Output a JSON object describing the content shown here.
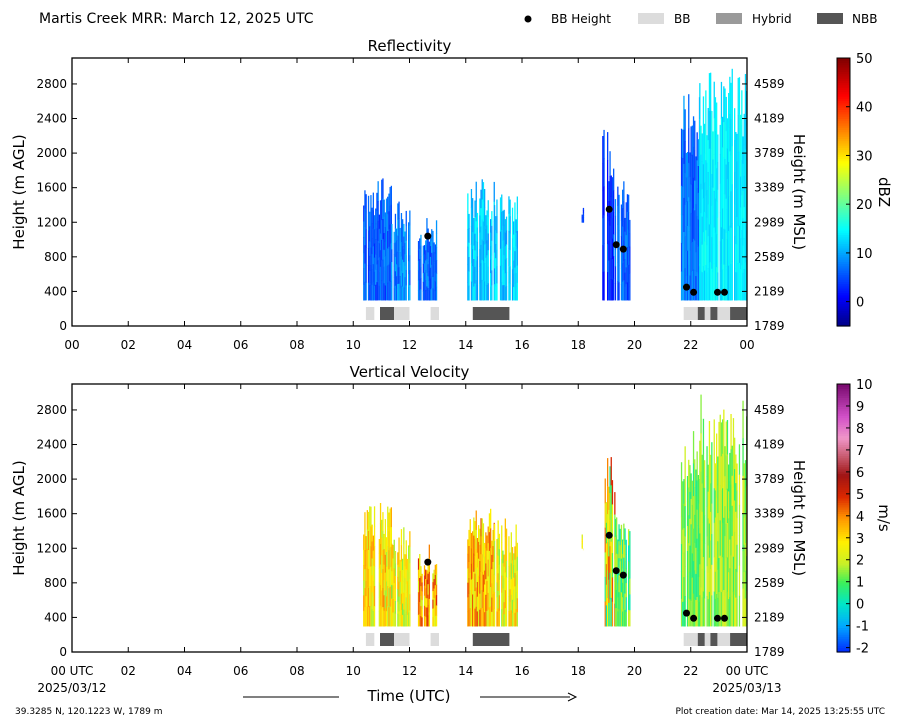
{
  "figure": {
    "title": "Martis Creek MRR:  March 12, 2025 UTC",
    "legend": [
      {
        "label": "BB Height",
        "kind": "dot",
        "color": "#000000"
      },
      {
        "label": "BB",
        "kind": "box",
        "color": "#dcdcdc"
      },
      {
        "label": "Hybrid",
        "kind": "box",
        "color": "#9a9a9a"
      },
      {
        "label": "NBB",
        "kind": "box",
        "color": "#555555"
      }
    ],
    "xlabel": "Time (UTC)",
    "x_start_label": "00 UTC",
    "x_end_label": "00 UTC",
    "date_start": "2025/03/12",
    "date_end": "2025/03/13",
    "footer_left": "39.3285 N, 120.1223 W, 1789 m",
    "footer_right": "Plot creation date: Mar 14, 2025 13:25:55 UTC",
    "colors": {
      "bb": "#dcdcdc",
      "hybrid": "#9a9a9a",
      "nbb": "#555555",
      "dot": "#000000"
    }
  },
  "chart_data": [
    {
      "type": "heatmap",
      "title": "Reflectivity",
      "ylabel": "Height (m AGL)",
      "ylabel_right": "Height (m MSL)",
      "xlim": [
        0,
        24
      ],
      "ylim": [
        0,
        3100
      ],
      "xticks": [
        "00",
        "02",
        "04",
        "06",
        "08",
        "10",
        "12",
        "14",
        "16",
        "18",
        "20",
        "22",
        "00"
      ],
      "yticks": [
        0,
        400,
        800,
        1200,
        1600,
        2000,
        2400,
        2800
      ],
      "yticks_right": [
        "1789",
        "2189",
        "2589",
        "2989",
        "3389",
        "3789",
        "4189",
        "4589"
      ],
      "colorbar": {
        "label": "dBZ",
        "range": [
          -5,
          50
        ],
        "ticks": [
          "0",
          "10",
          "20",
          "30",
          "40",
          "50"
        ],
        "tick_values": [
          0,
          10,
          20,
          30,
          40,
          50
        ]
      },
      "echo_blocks": [
        {
          "t_start": 10.35,
          "t_end": 11.35,
          "top": 1750,
          "value": 6,
          "value_var": 3
        },
        {
          "t_start": 11.35,
          "t_end": 12.0,
          "top": 1450,
          "value": 8,
          "value_var": 3
        },
        {
          "t_start": 12.3,
          "t_end": 12.95,
          "top": 1250,
          "value": 7,
          "value_var": 3
        },
        {
          "t_start": 14.05,
          "t_end": 15.0,
          "top": 1700,
          "value": 12,
          "value_var": 3
        },
        {
          "t_start": 15.0,
          "t_end": 15.85,
          "top": 1550,
          "value": 12,
          "value_var": 3
        },
        {
          "t_start": 18.12,
          "t_end": 18.18,
          "top": 1400,
          "base": 1200,
          "value": 4,
          "value_var": 1
        },
        {
          "t_start": 18.85,
          "t_end": 19.3,
          "top": 2300,
          "value": 4,
          "value_var": 3
        },
        {
          "t_start": 19.3,
          "t_end": 19.85,
          "top": 1700,
          "value": 6,
          "value_var": 3
        },
        {
          "t_start": 21.65,
          "t_end": 22.3,
          "top": 2700,
          "value": 7,
          "value_var": 3
        },
        {
          "t_start": 22.3,
          "t_end": 24.0,
          "top": 3000,
          "value": 14,
          "value_var": 2
        }
      ],
      "bb_heights": [
        {
          "t": 12.65,
          "h": 1040
        },
        {
          "t": 19.1,
          "h": 1350
        },
        {
          "t": 19.35,
          "h": 940
        },
        {
          "t": 19.6,
          "h": 890
        },
        {
          "t": 21.85,
          "h": 450
        },
        {
          "t": 22.1,
          "h": 390
        },
        {
          "t": 22.95,
          "h": 390
        },
        {
          "t": 23.2,
          "h": 390
        }
      ]
    },
    {
      "type": "heatmap",
      "title": "Vertical Velocity",
      "ylabel": "Height (m AGL)",
      "ylabel_right": "Height (m MSL)",
      "xlim": [
        0,
        24
      ],
      "ylim": [
        0,
        3100
      ],
      "xticks": [
        "02",
        "04",
        "06",
        "08",
        "10",
        "12",
        "14",
        "16",
        "18",
        "20",
        "22"
      ],
      "yticks": [
        0,
        400,
        800,
        1200,
        1600,
        2000,
        2400,
        2800
      ],
      "yticks_right": [
        "1789",
        "2189",
        "2589",
        "2989",
        "3389",
        "3789",
        "4189",
        "4589"
      ],
      "colorbar": {
        "label": "m/s",
        "range": [
          -2.2,
          10
        ],
        "ticks": [
          "-2",
          "-1",
          "0",
          "1",
          "2",
          "3",
          "4",
          "5",
          "6",
          "7",
          "8",
          "9",
          "10"
        ],
        "tick_values": [
          -2,
          -1,
          0,
          1,
          2,
          3,
          4,
          5,
          6,
          7,
          8,
          9,
          10
        ]
      },
      "echo_blocks": [
        {
          "t_start": 10.35,
          "t_end": 11.35,
          "top": 1750,
          "value": 2.8,
          "value_var": 1.2
        },
        {
          "t_start": 11.35,
          "t_end": 12.0,
          "top": 1450,
          "value": 2.5,
          "value_var": 1.2
        },
        {
          "t_start": 12.3,
          "t_end": 12.95,
          "top": 1250,
          "value": 3.5,
          "value_var": 1.5
        },
        {
          "t_start": 14.05,
          "t_end": 15.0,
          "top": 1700,
          "value": 3.3,
          "value_var": 1.3
        },
        {
          "t_start": 15.0,
          "t_end": 15.85,
          "top": 1550,
          "value": 2.5,
          "value_var": 1.2
        },
        {
          "t_start": 18.12,
          "t_end": 18.18,
          "top": 1400,
          "base": 1200,
          "value": 2.5,
          "value_var": 0.5
        },
        {
          "t_start": 18.85,
          "t_end": 19.3,
          "top": 2300,
          "value": 2.5,
          "value_var": 2.5
        },
        {
          "t_start": 19.3,
          "t_end": 19.85,
          "top": 1700,
          "value": 1.0,
          "value_var": 1.0
        },
        {
          "t_start": 21.65,
          "t_end": 22.3,
          "top": 2700,
          "value": 1.2,
          "value_var": 0.8
        },
        {
          "t_start": 22.3,
          "t_end": 24.0,
          "top": 3000,
          "value": 1.6,
          "value_var": 0.8
        }
      ],
      "bb_heights": [
        {
          "t": 12.65,
          "h": 1040
        },
        {
          "t": 19.1,
          "h": 1350
        },
        {
          "t": 19.35,
          "h": 940
        },
        {
          "t": 19.6,
          "h": 890
        },
        {
          "t": 21.85,
          "h": 450
        },
        {
          "t": 22.1,
          "h": 390
        },
        {
          "t": 22.95,
          "h": 390
        },
        {
          "t": 23.2,
          "h": 390
        }
      ]
    }
  ],
  "bb_classification": [
    {
      "t_start": 10.45,
      "t_end": 10.75,
      "class": "BB"
    },
    {
      "t_start": 10.95,
      "t_end": 11.45,
      "class": "NBB"
    },
    {
      "t_start": 11.45,
      "t_end": 12.0,
      "class": "BB"
    },
    {
      "t_start": 12.75,
      "t_end": 13.05,
      "class": "BB"
    },
    {
      "t_start": 14.25,
      "t_end": 15.55,
      "class": "NBB"
    },
    {
      "t_start": 21.75,
      "t_end": 22.25,
      "class": "BB"
    },
    {
      "t_start": 22.25,
      "t_end": 22.5,
      "class": "NBB"
    },
    {
      "t_start": 22.5,
      "t_end": 22.7,
      "class": "BB"
    },
    {
      "t_start": 22.7,
      "t_end": 22.95,
      "class": "NBB"
    },
    {
      "t_start": 22.95,
      "t_end": 23.4,
      "class": "BB"
    },
    {
      "t_start": 23.4,
      "t_end": 24.0,
      "class": "NBB"
    }
  ]
}
